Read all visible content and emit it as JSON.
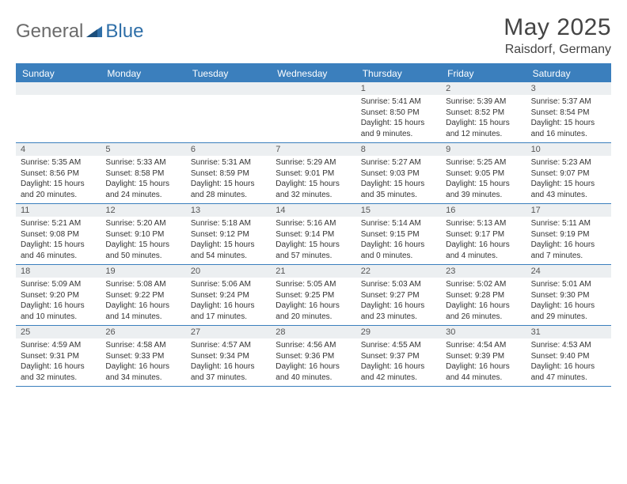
{
  "brand": {
    "text1": "General",
    "text2": "Blue"
  },
  "title": "May 2025",
  "subtitle": "Raisdorf, Germany",
  "colors": {
    "header_bar": "#3b7fbd",
    "daynum_bg": "#eceff1",
    "rule": "#3b7fbd",
    "logo_gray": "#6b6b6b",
    "logo_blue": "#2f6fa8"
  },
  "day_headers": [
    "Sunday",
    "Monday",
    "Tuesday",
    "Wednesday",
    "Thursday",
    "Friday",
    "Saturday"
  ],
  "weeks": [
    [
      {
        "n": "",
        "sr": "",
        "ss": "",
        "dl1": "",
        "dl2": ""
      },
      {
        "n": "",
        "sr": "",
        "ss": "",
        "dl1": "",
        "dl2": ""
      },
      {
        "n": "",
        "sr": "",
        "ss": "",
        "dl1": "",
        "dl2": ""
      },
      {
        "n": "",
        "sr": "",
        "ss": "",
        "dl1": "",
        "dl2": ""
      },
      {
        "n": "1",
        "sr": "Sunrise: 5:41 AM",
        "ss": "Sunset: 8:50 PM",
        "dl1": "Daylight: 15 hours",
        "dl2": "and 9 minutes."
      },
      {
        "n": "2",
        "sr": "Sunrise: 5:39 AM",
        "ss": "Sunset: 8:52 PM",
        "dl1": "Daylight: 15 hours",
        "dl2": "and 12 minutes."
      },
      {
        "n": "3",
        "sr": "Sunrise: 5:37 AM",
        "ss": "Sunset: 8:54 PM",
        "dl1": "Daylight: 15 hours",
        "dl2": "and 16 minutes."
      }
    ],
    [
      {
        "n": "4",
        "sr": "Sunrise: 5:35 AM",
        "ss": "Sunset: 8:56 PM",
        "dl1": "Daylight: 15 hours",
        "dl2": "and 20 minutes."
      },
      {
        "n": "5",
        "sr": "Sunrise: 5:33 AM",
        "ss": "Sunset: 8:58 PM",
        "dl1": "Daylight: 15 hours",
        "dl2": "and 24 minutes."
      },
      {
        "n": "6",
        "sr": "Sunrise: 5:31 AM",
        "ss": "Sunset: 8:59 PM",
        "dl1": "Daylight: 15 hours",
        "dl2": "and 28 minutes."
      },
      {
        "n": "7",
        "sr": "Sunrise: 5:29 AM",
        "ss": "Sunset: 9:01 PM",
        "dl1": "Daylight: 15 hours",
        "dl2": "and 32 minutes."
      },
      {
        "n": "8",
        "sr": "Sunrise: 5:27 AM",
        "ss": "Sunset: 9:03 PM",
        "dl1": "Daylight: 15 hours",
        "dl2": "and 35 minutes."
      },
      {
        "n": "9",
        "sr": "Sunrise: 5:25 AM",
        "ss": "Sunset: 9:05 PM",
        "dl1": "Daylight: 15 hours",
        "dl2": "and 39 minutes."
      },
      {
        "n": "10",
        "sr": "Sunrise: 5:23 AM",
        "ss": "Sunset: 9:07 PM",
        "dl1": "Daylight: 15 hours",
        "dl2": "and 43 minutes."
      }
    ],
    [
      {
        "n": "11",
        "sr": "Sunrise: 5:21 AM",
        "ss": "Sunset: 9:08 PM",
        "dl1": "Daylight: 15 hours",
        "dl2": "and 46 minutes."
      },
      {
        "n": "12",
        "sr": "Sunrise: 5:20 AM",
        "ss": "Sunset: 9:10 PM",
        "dl1": "Daylight: 15 hours",
        "dl2": "and 50 minutes."
      },
      {
        "n": "13",
        "sr": "Sunrise: 5:18 AM",
        "ss": "Sunset: 9:12 PM",
        "dl1": "Daylight: 15 hours",
        "dl2": "and 54 minutes."
      },
      {
        "n": "14",
        "sr": "Sunrise: 5:16 AM",
        "ss": "Sunset: 9:14 PM",
        "dl1": "Daylight: 15 hours",
        "dl2": "and 57 minutes."
      },
      {
        "n": "15",
        "sr": "Sunrise: 5:14 AM",
        "ss": "Sunset: 9:15 PM",
        "dl1": "Daylight: 16 hours",
        "dl2": "and 0 minutes."
      },
      {
        "n": "16",
        "sr": "Sunrise: 5:13 AM",
        "ss": "Sunset: 9:17 PM",
        "dl1": "Daylight: 16 hours",
        "dl2": "and 4 minutes."
      },
      {
        "n": "17",
        "sr": "Sunrise: 5:11 AM",
        "ss": "Sunset: 9:19 PM",
        "dl1": "Daylight: 16 hours",
        "dl2": "and 7 minutes."
      }
    ],
    [
      {
        "n": "18",
        "sr": "Sunrise: 5:09 AM",
        "ss": "Sunset: 9:20 PM",
        "dl1": "Daylight: 16 hours",
        "dl2": "and 10 minutes."
      },
      {
        "n": "19",
        "sr": "Sunrise: 5:08 AM",
        "ss": "Sunset: 9:22 PM",
        "dl1": "Daylight: 16 hours",
        "dl2": "and 14 minutes."
      },
      {
        "n": "20",
        "sr": "Sunrise: 5:06 AM",
        "ss": "Sunset: 9:24 PM",
        "dl1": "Daylight: 16 hours",
        "dl2": "and 17 minutes."
      },
      {
        "n": "21",
        "sr": "Sunrise: 5:05 AM",
        "ss": "Sunset: 9:25 PM",
        "dl1": "Daylight: 16 hours",
        "dl2": "and 20 minutes."
      },
      {
        "n": "22",
        "sr": "Sunrise: 5:03 AM",
        "ss": "Sunset: 9:27 PM",
        "dl1": "Daylight: 16 hours",
        "dl2": "and 23 minutes."
      },
      {
        "n": "23",
        "sr": "Sunrise: 5:02 AM",
        "ss": "Sunset: 9:28 PM",
        "dl1": "Daylight: 16 hours",
        "dl2": "and 26 minutes."
      },
      {
        "n": "24",
        "sr": "Sunrise: 5:01 AM",
        "ss": "Sunset: 9:30 PM",
        "dl1": "Daylight: 16 hours",
        "dl2": "and 29 minutes."
      }
    ],
    [
      {
        "n": "25",
        "sr": "Sunrise: 4:59 AM",
        "ss": "Sunset: 9:31 PM",
        "dl1": "Daylight: 16 hours",
        "dl2": "and 32 minutes."
      },
      {
        "n": "26",
        "sr": "Sunrise: 4:58 AM",
        "ss": "Sunset: 9:33 PM",
        "dl1": "Daylight: 16 hours",
        "dl2": "and 34 minutes."
      },
      {
        "n": "27",
        "sr": "Sunrise: 4:57 AM",
        "ss": "Sunset: 9:34 PM",
        "dl1": "Daylight: 16 hours",
        "dl2": "and 37 minutes."
      },
      {
        "n": "28",
        "sr": "Sunrise: 4:56 AM",
        "ss": "Sunset: 9:36 PM",
        "dl1": "Daylight: 16 hours",
        "dl2": "and 40 minutes."
      },
      {
        "n": "29",
        "sr": "Sunrise: 4:55 AM",
        "ss": "Sunset: 9:37 PM",
        "dl1": "Daylight: 16 hours",
        "dl2": "and 42 minutes."
      },
      {
        "n": "30",
        "sr": "Sunrise: 4:54 AM",
        "ss": "Sunset: 9:39 PM",
        "dl1": "Daylight: 16 hours",
        "dl2": "and 44 minutes."
      },
      {
        "n": "31",
        "sr": "Sunrise: 4:53 AM",
        "ss": "Sunset: 9:40 PM",
        "dl1": "Daylight: 16 hours",
        "dl2": "and 47 minutes."
      }
    ]
  ]
}
